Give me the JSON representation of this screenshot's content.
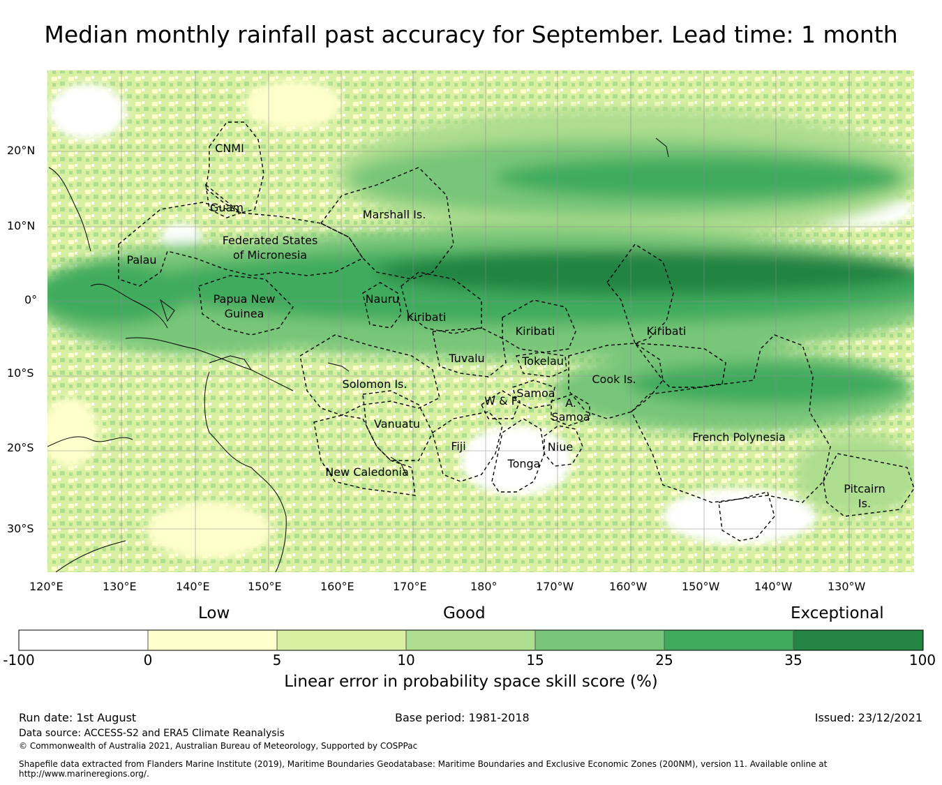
{
  "title": "Median monthly rainfall past accuracy for September. Lead time: 1 month",
  "map": {
    "lon_labels": [
      "120°E",
      "130°E",
      "140°E",
      "150°E",
      "160°E",
      "170°E",
      "180°",
      "170°W",
      "160°W",
      "150°W",
      "140°W",
      "130°W"
    ],
    "lat_labels": [
      "20°N",
      "10°N",
      "0°",
      "10°S",
      "20°S",
      "30°S"
    ],
    "regions": [
      "CNMI",
      "Guam",
      "Marshall Is.",
      "Federated States",
      "of Micronesia",
      "Palau",
      "Papua New",
      "Guinea",
      "Nauru",
      "Kiribati",
      "Kiribati",
      "Kiribati",
      "Tuvalu",
      "Tokelau",
      "Cook Is.",
      "Solomon Is.",
      "Samoa",
      "W & F",
      "A.",
      "Samoa",
      "Vanuatu",
      "Fiji",
      "Niue",
      "Tonga",
      "French Polynesia",
      "New Caledonia",
      "Pitcairn",
      "Is."
    ]
  },
  "colorbar": {
    "categories": [
      "Low",
      "Good",
      "Exceptional"
    ],
    "ticks": [
      "-100",
      "0",
      "5",
      "10",
      "15",
      "25",
      "35",
      "100"
    ],
    "colors": [
      "#ffffff",
      "#ffffcc",
      "#d9f0a3",
      "#addd8e",
      "#78c679",
      "#41ab5d",
      "#238443"
    ],
    "label": "Linear error in probability space skill score (%)"
  },
  "footer": {
    "run_date": "Run date: 1st August",
    "base_period": "Base period: 1981-2018",
    "issued": "Issued: 23/12/2021",
    "data_source": "Data source: ACCESS-S2 and ERA5 Climate Reanalysis",
    "copyright": "© Commonwealth of Australia 2021, Australian Bureau of Meteorology, Supported by COSPPac",
    "shapefile_1": "Shapefile data extracted from Flanders Marine Institute (2019), Maritime Boundaries Geodatabase: Maritime Boundaries and Exclusive Economic Zones (200NM), version 11. Available online at",
    "shapefile_2": "http://www.marineregions.org/."
  }
}
